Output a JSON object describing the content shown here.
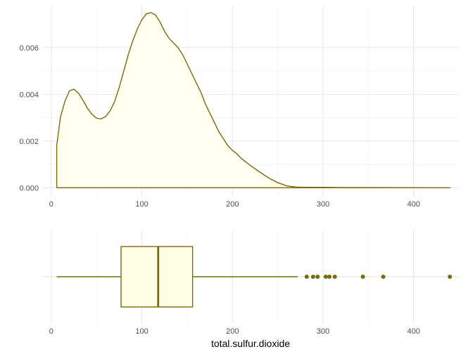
{
  "chart_data": [
    {
      "type": "area",
      "subtype": "density",
      "title": "",
      "xlabel": "",
      "ylabel": "",
      "xlim": [
        -10,
        450
      ],
      "ylim": [
        -0.00038,
        0.0078
      ],
      "xticks": [
        0,
        100,
        200,
        300,
        400
      ],
      "xtick_labels": [
        "0",
        "100",
        "200",
        "300",
        "400"
      ],
      "yticks": [
        0,
        0.002,
        0.004,
        0.006
      ],
      "ytick_labels": [
        "0.000",
        "0.002",
        "0.004",
        "0.006"
      ],
      "grid": true,
      "line_color": "#7a6a0a",
      "fill_color": "#fffff0",
      "x": [
        6,
        10,
        15,
        20,
        25,
        30,
        35,
        40,
        45,
        50,
        55,
        60,
        65,
        70,
        75,
        80,
        85,
        90,
        95,
        100,
        105,
        110,
        115,
        120,
        125,
        130,
        135,
        140,
        145,
        150,
        155,
        160,
        165,
        170,
        175,
        180,
        185,
        190,
        195,
        200,
        205,
        210,
        220,
        230,
        240,
        250,
        260,
        270,
        280,
        290,
        300,
        320,
        340,
        360,
        380,
        400,
        420,
        440
      ],
      "y": [
        0.0018,
        0.003,
        0.0037,
        0.00415,
        0.00422,
        0.00405,
        0.00375,
        0.0034,
        0.00315,
        0.00298,
        0.00295,
        0.00305,
        0.0033,
        0.0037,
        0.0043,
        0.005,
        0.0057,
        0.0063,
        0.0068,
        0.0072,
        0.00745,
        0.0075,
        0.0074,
        0.0071,
        0.0067,
        0.0064,
        0.0062,
        0.006,
        0.0057,
        0.0053,
        0.0049,
        0.0045,
        0.0041,
        0.0036,
        0.0032,
        0.0028,
        0.0024,
        0.0021,
        0.0018,
        0.0016,
        0.00145,
        0.00125,
        0.00095,
        0.00068,
        0.00042,
        0.00022,
        8e-05,
        3e-05,
        2e-05,
        2e-05,
        2e-05,
        1e-05,
        1e-05,
        1e-05,
        5e-06,
        3e-06,
        2e-06,
        1e-06
      ]
    },
    {
      "type": "boxplot",
      "title": "",
      "xlabel": "total.sulfur.dioxide",
      "ylabel": "",
      "xlim": [
        -10,
        450
      ],
      "xticks": [
        0,
        100,
        200,
        300,
        400
      ],
      "xtick_labels": [
        "0",
        "100",
        "200",
        "300",
        "400"
      ],
      "grid": true,
      "line_color": "#7a6a0a",
      "fill_color": "#ffffe6",
      "point_color": "#7a6a0a",
      "stats": {
        "whisker_low": 6,
        "q1": 77,
        "median": 118,
        "q3": 156,
        "whisker_high": 272
      },
      "outliers": [
        282,
        289,
        294,
        303,
        307,
        313,
        344,
        366.5,
        440
      ]
    }
  ]
}
